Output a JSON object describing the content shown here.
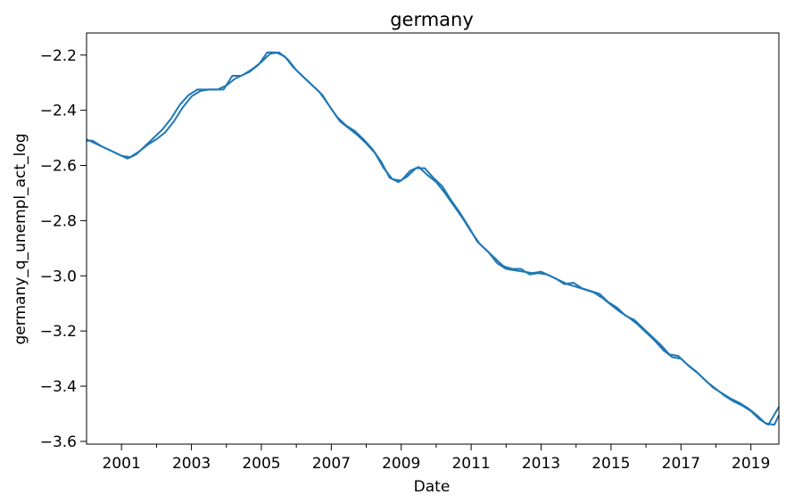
{
  "chart_data": {
    "type": "line",
    "title": "germany",
    "xlabel": "Date",
    "ylabel": "germany_q_unempl_act_log",
    "xlim": [
      2000.0,
      2019.8
    ],
    "ylim": [
      -3.61,
      -2.12
    ],
    "x_ticks": [
      {
        "value": 2001,
        "label": "2001"
      },
      {
        "value": 2003,
        "label": "2003"
      },
      {
        "value": 2005,
        "label": "2005"
      },
      {
        "value": 2007,
        "label": "2007"
      },
      {
        "value": 2009,
        "label": "2009"
      },
      {
        "value": 2011,
        "label": "2011"
      },
      {
        "value": 2013,
        "label": "2013"
      },
      {
        "value": 2015,
        "label": "2015"
      },
      {
        "value": 2017,
        "label": "2017"
      },
      {
        "value": 2019,
        "label": "2019"
      }
    ],
    "x_minor_ticks": [
      2002,
      2004,
      2006,
      2008,
      2010,
      2012,
      2014,
      2016,
      2018
    ],
    "y_ticks": [
      {
        "value": -2.2,
        "label": "−2.2"
      },
      {
        "value": -2.4,
        "label": "−2.4"
      },
      {
        "value": -2.6,
        "label": "−2.6"
      },
      {
        "value": -2.8,
        "label": "−2.8"
      },
      {
        "value": -3.0,
        "label": "−3.0"
      },
      {
        "value": -3.2,
        "label": "−3.2"
      },
      {
        "value": -3.4,
        "label": "−3.4"
      },
      {
        "value": -3.6,
        "label": "−3.6"
      }
    ],
    "grid": false,
    "line_color": "#1f77b4",
    "series": [
      {
        "values": [
          [
            2000.0,
            -2.505
          ],
          [
            2000.25,
            -2.52
          ],
          [
            2000.5,
            -2.535
          ],
          [
            2000.75,
            -2.55
          ],
          [
            2001.0,
            -2.565
          ],
          [
            2001.25,
            -2.57
          ],
          [
            2001.5,
            -2.55
          ],
          [
            2001.75,
            -2.525
          ],
          [
            2002.0,
            -2.505
          ],
          [
            2002.25,
            -2.48
          ],
          [
            2002.5,
            -2.44
          ],
          [
            2002.75,
            -2.39
          ],
          [
            2003.0,
            -2.35
          ],
          [
            2003.25,
            -2.33
          ],
          [
            2003.5,
            -2.325
          ],
          [
            2003.75,
            -2.325
          ],
          [
            2004.0,
            -2.31
          ],
          [
            2004.25,
            -2.285
          ],
          [
            2004.5,
            -2.27
          ],
          [
            2004.75,
            -2.25
          ],
          [
            2005.0,
            -2.225
          ],
          [
            2005.25,
            -2.195
          ],
          [
            2005.5,
            -2.19
          ],
          [
            2005.75,
            -2.215
          ],
          [
            2006.0,
            -2.255
          ],
          [
            2006.25,
            -2.285
          ],
          [
            2006.5,
            -2.315
          ],
          [
            2006.75,
            -2.345
          ],
          [
            2007.0,
            -2.395
          ],
          [
            2007.25,
            -2.44
          ],
          [
            2007.5,
            -2.465
          ],
          [
            2007.75,
            -2.49
          ],
          [
            2008.0,
            -2.52
          ],
          [
            2008.25,
            -2.555
          ],
          [
            2008.5,
            -2.61
          ],
          [
            2008.75,
            -2.65
          ],
          [
            2009.0,
            -2.655
          ],
          [
            2009.25,
            -2.62
          ],
          [
            2009.5,
            -2.605
          ],
          [
            2009.75,
            -2.635
          ],
          [
            2010.0,
            -2.66
          ],
          [
            2010.25,
            -2.7
          ],
          [
            2010.5,
            -2.745
          ],
          [
            2010.75,
            -2.79
          ],
          [
            2011.0,
            -2.84
          ],
          [
            2011.25,
            -2.885
          ],
          [
            2011.5,
            -2.915
          ],
          [
            2011.75,
            -2.955
          ],
          [
            2012.0,
            -2.975
          ],
          [
            2012.25,
            -2.98
          ],
          [
            2012.5,
            -2.985
          ],
          [
            2012.75,
            -2.99
          ],
          [
            2013.0,
            -2.985
          ],
          [
            2013.25,
            -3.0
          ],
          [
            2013.5,
            -3.015
          ],
          [
            2013.75,
            -3.03
          ],
          [
            2014.0,
            -3.04
          ],
          [
            2014.25,
            -3.05
          ],
          [
            2014.5,
            -3.06
          ],
          [
            2014.75,
            -3.08
          ],
          [
            2015.0,
            -3.105
          ],
          [
            2015.25,
            -3.13
          ],
          [
            2015.5,
            -3.15
          ],
          [
            2015.75,
            -3.175
          ],
          [
            2016.0,
            -3.205
          ],
          [
            2016.25,
            -3.235
          ],
          [
            2016.5,
            -3.27
          ],
          [
            2016.75,
            -3.295
          ],
          [
            2017.0,
            -3.3
          ],
          [
            2017.25,
            -3.33
          ],
          [
            2017.5,
            -3.355
          ],
          [
            2017.75,
            -3.385
          ],
          [
            2018.0,
            -3.41
          ],
          [
            2018.25,
            -3.435
          ],
          [
            2018.5,
            -3.455
          ],
          [
            2018.75,
            -3.47
          ],
          [
            2019.0,
            -3.49
          ],
          [
            2019.25,
            -3.52
          ],
          [
            2019.5,
            -3.54
          ],
          [
            2019.8,
            -3.475
          ]
        ]
      },
      {
        "values": [
          [
            2000.0,
            -2.51
          ],
          [
            2000.17,
            -2.51
          ],
          [
            2000.42,
            -2.53
          ],
          [
            2000.67,
            -2.545
          ],
          [
            2000.92,
            -2.56
          ],
          [
            2001.17,
            -2.575
          ],
          [
            2001.42,
            -2.56
          ],
          [
            2001.67,
            -2.53
          ],
          [
            2001.92,
            -2.5
          ],
          [
            2002.17,
            -2.47
          ],
          [
            2002.42,
            -2.43
          ],
          [
            2002.67,
            -2.38
          ],
          [
            2002.92,
            -2.345
          ],
          [
            2003.17,
            -2.325
          ],
          [
            2003.42,
            -2.325
          ],
          [
            2003.67,
            -2.325
          ],
          [
            2003.92,
            -2.325
          ],
          [
            2004.17,
            -2.275
          ],
          [
            2004.42,
            -2.275
          ],
          [
            2004.67,
            -2.26
          ],
          [
            2004.92,
            -2.235
          ],
          [
            2005.17,
            -2.19
          ],
          [
            2005.42,
            -2.19
          ],
          [
            2005.67,
            -2.205
          ],
          [
            2005.92,
            -2.245
          ],
          [
            2006.17,
            -2.275
          ],
          [
            2006.42,
            -2.305
          ],
          [
            2006.67,
            -2.335
          ],
          [
            2006.92,
            -2.38
          ],
          [
            2007.17,
            -2.425
          ],
          [
            2007.42,
            -2.455
          ],
          [
            2007.67,
            -2.475
          ],
          [
            2007.92,
            -2.505
          ],
          [
            2008.17,
            -2.54
          ],
          [
            2008.42,
            -2.585
          ],
          [
            2008.67,
            -2.645
          ],
          [
            2008.92,
            -2.66
          ],
          [
            2009.17,
            -2.64
          ],
          [
            2009.42,
            -2.61
          ],
          [
            2009.67,
            -2.61
          ],
          [
            2009.92,
            -2.645
          ],
          [
            2010.17,
            -2.675
          ],
          [
            2010.42,
            -2.725
          ],
          [
            2010.67,
            -2.77
          ],
          [
            2010.92,
            -2.82
          ],
          [
            2011.17,
            -2.875
          ],
          [
            2011.42,
            -2.905
          ],
          [
            2011.67,
            -2.935
          ],
          [
            2011.92,
            -2.965
          ],
          [
            2012.17,
            -2.975
          ],
          [
            2012.42,
            -2.975
          ],
          [
            2012.67,
            -2.995
          ],
          [
            2012.92,
            -2.99
          ],
          [
            2013.17,
            -2.995
          ],
          [
            2013.42,
            -3.01
          ],
          [
            2013.67,
            -3.03
          ],
          [
            2013.92,
            -3.025
          ],
          [
            2014.17,
            -3.045
          ],
          [
            2014.42,
            -3.055
          ],
          [
            2014.67,
            -3.065
          ],
          [
            2014.92,
            -3.095
          ],
          [
            2015.17,
            -3.115
          ],
          [
            2015.42,
            -3.145
          ],
          [
            2015.67,
            -3.16
          ],
          [
            2015.92,
            -3.19
          ],
          [
            2016.17,
            -3.22
          ],
          [
            2016.42,
            -3.25
          ],
          [
            2016.67,
            -3.285
          ],
          [
            2016.92,
            -3.29
          ],
          [
            2017.17,
            -3.32
          ],
          [
            2017.42,
            -3.345
          ],
          [
            2017.67,
            -3.375
          ],
          [
            2017.92,
            -3.405
          ],
          [
            2018.17,
            -3.425
          ],
          [
            2018.42,
            -3.445
          ],
          [
            2018.67,
            -3.46
          ],
          [
            2018.92,
            -3.48
          ],
          [
            2019.17,
            -3.505
          ],
          [
            2019.42,
            -3.535
          ],
          [
            2019.67,
            -3.54
          ],
          [
            2019.8,
            -3.505
          ]
        ]
      }
    ]
  }
}
